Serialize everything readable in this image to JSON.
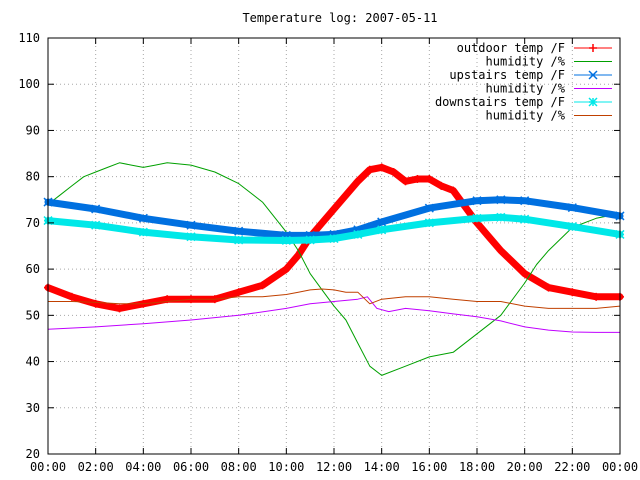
{
  "chart_data": {
    "type": "line",
    "title": "Temperature log: 2007-05-11",
    "xlabel": "",
    "ylabel": "",
    "xlim": [
      0,
      24
    ],
    "ylim": [
      20,
      110
    ],
    "grid": true,
    "legend_position": "top-right",
    "x_ticks": [
      {
        "value": 0,
        "label": "00:00"
      },
      {
        "value": 2,
        "label": "02:00"
      },
      {
        "value": 4,
        "label": "04:00"
      },
      {
        "value": 6,
        "label": "06:00"
      },
      {
        "value": 8,
        "label": "08:00"
      },
      {
        "value": 10,
        "label": "10:00"
      },
      {
        "value": 12,
        "label": "12:00"
      },
      {
        "value": 14,
        "label": "14:00"
      },
      {
        "value": 16,
        "label": "16:00"
      },
      {
        "value": 18,
        "label": "18:00"
      },
      {
        "value": 20,
        "label": "20:00"
      },
      {
        "value": 22,
        "label": "22:00"
      },
      {
        "value": 24,
        "label": "00:00"
      }
    ],
    "y_ticks": [
      {
        "value": 20,
        "label": "20"
      },
      {
        "value": 30,
        "label": "30"
      },
      {
        "value": 40,
        "label": "40"
      },
      {
        "value": 50,
        "label": "50"
      },
      {
        "value": 60,
        "label": "60"
      },
      {
        "value": 70,
        "label": "70"
      },
      {
        "value": 80,
        "label": "80"
      },
      {
        "value": 90,
        "label": "90"
      },
      {
        "value": 100,
        "label": "100"
      },
      {
        "value": 110,
        "label": "110"
      }
    ],
    "series": [
      {
        "name": "outdoor temp /F",
        "color": "#ff0000",
        "marker": "plus",
        "x": [
          0,
          1,
          2,
          3,
          4,
          5,
          6,
          7,
          8,
          9,
          10,
          10.5,
          11,
          11.5,
          12,
          13,
          13.5,
          14,
          14.5,
          15,
          15.5,
          16,
          16.5,
          17,
          18,
          18.5,
          19,
          20,
          21,
          22,
          23,
          24
        ],
        "y": [
          56,
          54,
          52.5,
          51.5,
          52.5,
          53.5,
          53.5,
          53.5,
          55,
          56.5,
          60,
          63,
          67,
          70,
          73,
          79,
          81.5,
          82,
          81,
          79,
          79.5,
          79.5,
          78,
          77,
          70,
          67,
          64,
          59,
          56,
          55,
          54,
          54
        ]
      },
      {
        "name": "humidity /%",
        "color": "#00a000",
        "marker": "none",
        "x": [
          0,
          0.5,
          1,
          1.5,
          2,
          2.5,
          3,
          3.5,
          4,
          4.5,
          5,
          6,
          7,
          8,
          9,
          10,
          10.5,
          11,
          11.5,
          12,
          12.5,
          13,
          13.5,
          14,
          15,
          16,
          17,
          18,
          19,
          20,
          20.5,
          21,
          22,
          23,
          24
        ],
        "y": [
          74,
          76,
          78,
          80,
          81,
          82,
          83,
          82.5,
          82,
          82.5,
          83,
          82.5,
          81,
          78.5,
          74.5,
          68,
          64,
          59,
          55.5,
          52,
          49,
          44,
          39,
          37,
          39,
          41,
          42,
          46,
          50,
          57,
          61,
          64,
          69,
          71,
          72
        ]
      },
      {
        "name": "upstairs temp /F",
        "color": "#0070e0",
        "marker": "cross",
        "x": [
          0,
          2,
          4,
          6,
          8,
          10,
          11,
          12,
          13,
          14,
          16,
          18,
          19,
          20,
          22,
          24
        ],
        "y": [
          74.5,
          73,
          71,
          69.5,
          68.2,
          67.3,
          67.3,
          67.5,
          68.5,
          70.2,
          73.2,
          74.8,
          75,
          74.8,
          73.3,
          71.5
        ]
      },
      {
        "name": "humidity /%",
        "color": "#c000ff",
        "marker": "none",
        "x": [
          0,
          2,
          4,
          6,
          8,
          10,
          11,
          12,
          13,
          13.4,
          13.8,
          14.3,
          15,
          16,
          17,
          18,
          19,
          20,
          21,
          22,
          23,
          24
        ],
        "y": [
          47,
          47.5,
          48.2,
          49,
          50,
          51.5,
          52.5,
          53,
          53.5,
          54,
          51.5,
          50.8,
          51.5,
          51,
          50.3,
          49.7,
          48.8,
          47.5,
          46.8,
          46.4,
          46.3,
          46.3
        ]
      },
      {
        "name": "downstairs temp /F",
        "color": "#00e8e8",
        "marker": "star",
        "x": [
          0,
          2,
          4,
          6,
          8,
          10,
          11,
          12,
          13,
          14,
          16,
          18,
          19,
          20,
          22,
          24
        ],
        "y": [
          70.5,
          69.5,
          68,
          67,
          66.3,
          66.2,
          66.3,
          66.6,
          67.5,
          68.5,
          70,
          71,
          71.2,
          70.8,
          69.2,
          67.5
        ]
      },
      {
        "name": "humidity /%",
        "color": "#c04000",
        "marker": "none",
        "x": [
          0,
          1,
          2,
          3,
          4,
          5,
          6,
          7,
          8,
          9,
          10,
          10.5,
          11,
          11.5,
          12,
          12.5,
          13,
          13.5,
          14,
          15,
          16,
          17,
          18,
          19,
          20,
          21,
          22,
          23,
          24
        ],
        "y": [
          53,
          53,
          52.8,
          52.5,
          52.5,
          53,
          53.5,
          53.5,
          54,
          54,
          54.5,
          55,
          55.5,
          55.7,
          55.5,
          55,
          55,
          52.5,
          53.5,
          54,
          54,
          53.5,
          53,
          53,
          52,
          51.5,
          51.5,
          51.5,
          52
        ]
      }
    ]
  }
}
